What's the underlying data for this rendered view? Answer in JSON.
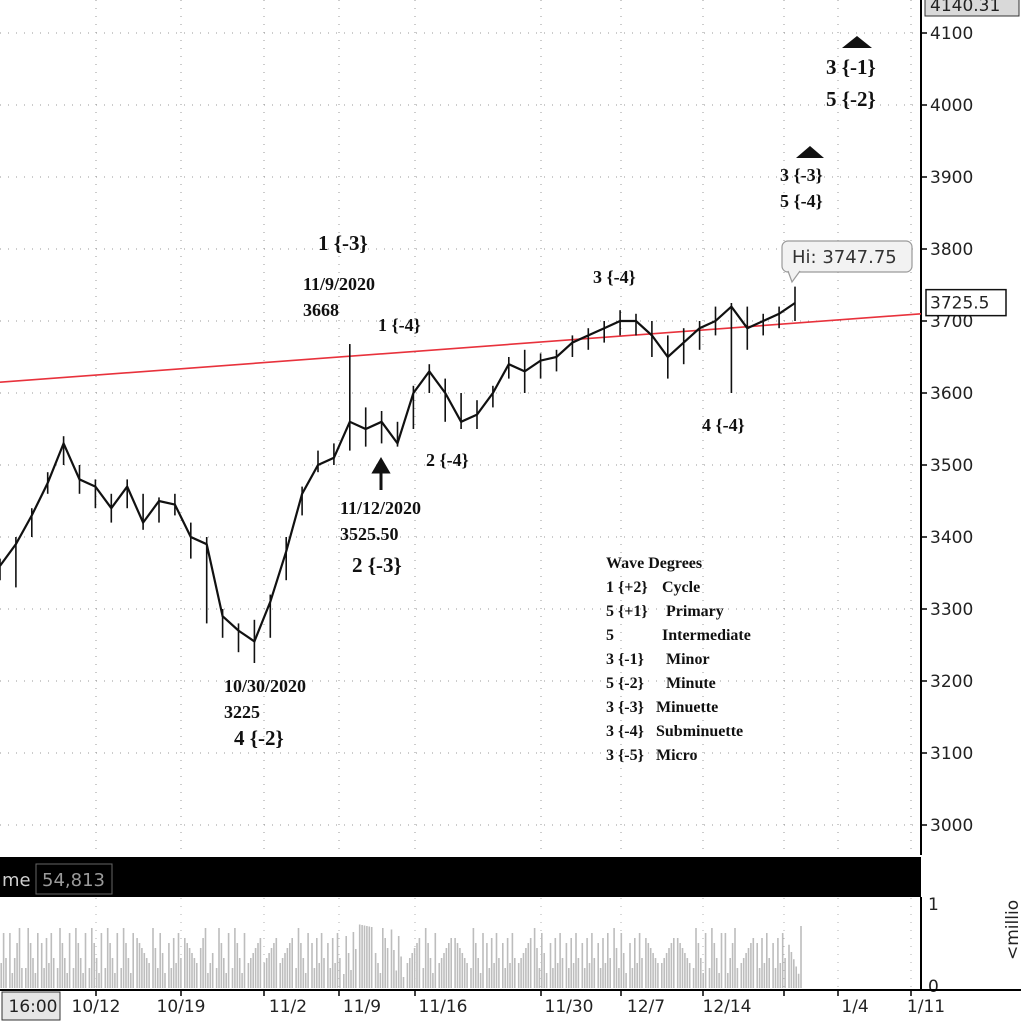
{
  "chart_data": {
    "type": "line",
    "price_axis": {
      "ylim": [
        2965,
        4145
      ],
      "ticks": [
        3000,
        3100,
        3200,
        3300,
        3400,
        3500,
        3600,
        3700,
        3800,
        3900,
        4000,
        4100
      ],
      "top_partial_label": "4140.31",
      "last_price_label": "3725.5",
      "last_price": 3725.5,
      "grid": true
    },
    "x_axis": {
      "labels": [
        "16:00",
        "10/12",
        "10/19",
        "11/2",
        "11/9",
        "11/16",
        "11/30",
        "12/7",
        "12/14",
        "1/4",
        "1/11"
      ]
    },
    "price_series": {
      "x": [
        "10/8",
        "10/9",
        "10/12",
        "10/13",
        "10/14",
        "10/15",
        "10/16",
        "10/19",
        "10/20",
        "10/21",
        "10/22",
        "10/23",
        "10/26",
        "10/27",
        "10/28",
        "10/29",
        "10/30",
        "11/2",
        "11/3",
        "11/4",
        "11/5",
        "11/6",
        "11/9",
        "11/10",
        "11/11",
        "11/12",
        "11/13",
        "11/16",
        "11/17",
        "11/18",
        "11/19",
        "11/20",
        "11/23",
        "11/24",
        "11/25",
        "11/27",
        "11/30",
        "12/1",
        "12/2",
        "12/3",
        "12/4",
        "12/7",
        "12/8",
        "12/9",
        "12/10",
        "12/11",
        "12/14",
        "12/15",
        "12/16",
        "12/17",
        "12/18"
      ],
      "close": [
        3360,
        3390,
        3430,
        3475,
        3530,
        3480,
        3470,
        3440,
        3470,
        3420,
        3450,
        3445,
        3400,
        3390,
        3290,
        3270,
        3255,
        3310,
        3380,
        3460,
        3500,
        3510,
        3560,
        3550,
        3560,
        3530,
        3600,
        3630,
        3600,
        3560,
        3570,
        3600,
        3640,
        3630,
        3645,
        3650,
        3670,
        3680,
        3690,
        3700,
        3700,
        3680,
        3650,
        3670,
        3690,
        3700,
        3720,
        3690,
        3700,
        3710,
        3725
      ],
      "high": [
        3370,
        3400,
        3440,
        3490,
        3540,
        3500,
        3480,
        3460,
        3480,
        3460,
        3455,
        3460,
        3420,
        3400,
        3300,
        3280,
        3285,
        3320,
        3400,
        3470,
        3520,
        3530,
        3668,
        3580,
        3575,
        3560,
        3610,
        3640,
        3620,
        3600,
        3590,
        3610,
        3650,
        3660,
        3655,
        3660,
        3680,
        3690,
        3700,
        3715,
        3710,
        3700,
        3680,
        3690,
        3700,
        3720,
        3725,
        3720,
        3710,
        3720,
        3747.75
      ],
      "low": [
        3340,
        3330,
        3400,
        3460,
        3500,
        3460,
        3440,
        3420,
        3440,
        3410,
        3420,
        3430,
        3370,
        3280,
        3260,
        3240,
        3225,
        3260,
        3340,
        3430,
        3490,
        3500,
        3520,
        3525.5,
        3530,
        3525.5,
        3550,
        3600,
        3560,
        3550,
        3550,
        3580,
        3620,
        3600,
        3620,
        3630,
        3650,
        3660,
        3670,
        3680,
        3680,
        3650,
        3620,
        3640,
        3660,
        3680,
        3600,
        3660,
        3680,
        3690,
        3700
      ]
    },
    "trendline": {
      "from_price": 3615,
      "to_price": 3710
    },
    "hi_label": "Hi: 3747.75",
    "annotations": [
      {
        "lines": [
          "10/30/2020",
          "3225",
          "4 {-2}"
        ]
      },
      {
        "lines": [
          "1 {-3}",
          "11/9/2020",
          "3668"
        ]
      },
      {
        "lines": [
          "1 {-4}"
        ]
      },
      {
        "lines": [
          "11/12/2020",
          "3525.50",
          "2 {-3}"
        ]
      },
      {
        "lines": [
          "2 {-4}"
        ]
      },
      {
        "lines": [
          "3 {-4}"
        ]
      },
      {
        "lines": [
          "4 {-4}"
        ]
      },
      {
        "lines": [
          "3 {-3}",
          "5 {-4}"
        ]
      },
      {
        "lines": [
          "3 {-1}",
          "5 {-2}"
        ]
      }
    ],
    "legend": {
      "title": "Wave Degrees",
      "items": [
        [
          "1 {+2}",
          "Cycle"
        ],
        [
          "5 {+1}",
          "Primary"
        ],
        [
          "5",
          "Intermediate"
        ],
        [
          "3 {-1}",
          "Minor"
        ],
        [
          "5 {-2}",
          "Minute"
        ],
        [
          "3 {-3}",
          "Minuette"
        ],
        [
          "3 {-4}",
          "Subminuette"
        ],
        [
          "3 {-5}",
          "Micro"
        ]
      ],
      "placement": "bottom-right"
    },
    "volume_panel": {
      "label": "me",
      "value_label": "54,813",
      "axis_top": "1",
      "axis_bottom": "0",
      "unit_label": "<millio"
    }
  }
}
